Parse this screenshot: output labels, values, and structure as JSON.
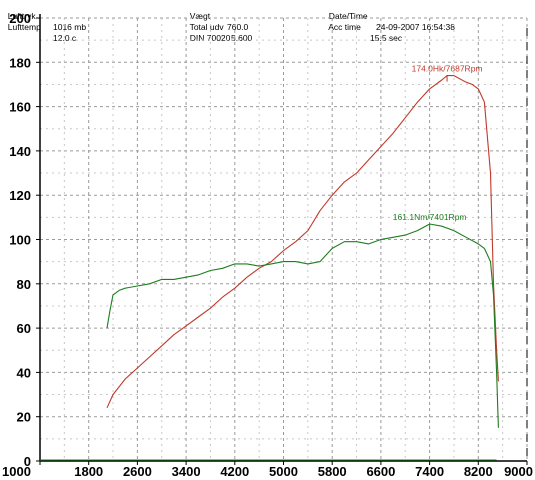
{
  "header": {
    "luft_tryk_label": "Lufttryk",
    "luft_tryk_value": "1016 mb",
    "luft_temp_label": "Lufttemp",
    "luft_temp_value": "12.0 c",
    "vaegt_label": "Vægt",
    "vaegt_value": "760.0",
    "total_udv_label": "Total udv",
    "total_udv_value": "5.600",
    "din_label": "DIN 70020",
    "datetime_label": "Date/Time",
    "datetime_value": "24-09-2007 16:54:38",
    "acc_time_label": "Acc time",
    "acc_time_value": "15.5 sec"
  },
  "chart_data": {
    "type": "line",
    "x_ticks": [
      1000,
      1800,
      2600,
      3400,
      4200,
      5000,
      5800,
      6600,
      7400,
      8200,
      9000
    ],
    "y_ticks": [
      0,
      20,
      40,
      60,
      80,
      100,
      120,
      140,
      160,
      180,
      200
    ],
    "xlim": [
      1000,
      9000
    ],
    "ylim": [
      0,
      200
    ],
    "grid": true,
    "colors": {
      "power": "#c0392b",
      "torque": "#1e7d1e",
      "grid": "#9a9a9a"
    },
    "series": [
      {
        "key": "power",
        "x": [
          2100,
          2200,
          2400,
          2600,
          2800,
          3000,
          3200,
          3400,
          3600,
          3800,
          4000,
          4200,
          4400,
          4600,
          4800,
          5000,
          5200,
          5400,
          5600,
          5800,
          6000,
          6200,
          6400,
          6600,
          6800,
          7000,
          7200,
          7400,
          7600,
          7687,
          7800,
          8000,
          8100,
          8200,
          8300,
          8400,
          8450,
          8500,
          8530
        ],
        "values": [
          24,
          30,
          37,
          42,
          47,
          52,
          57,
          61,
          65,
          69,
          74,
          78,
          83,
          87,
          90,
          95,
          99,
          104,
          113,
          120,
          126,
          130,
          136,
          142,
          148,
          155,
          162,
          168,
          172,
          174,
          174,
          171,
          170,
          168,
          162,
          130,
          80,
          50,
          36
        ]
      },
      {
        "key": "torque",
        "x": [
          2100,
          2150,
          2200,
          2300,
          2400,
          2600,
          2800,
          3000,
          3200,
          3400,
          3600,
          3800,
          4000,
          4200,
          4400,
          4600,
          4800,
          5000,
          5200,
          5400,
          5600,
          5800,
          6000,
          6200,
          6400,
          6600,
          6800,
          7000,
          7200,
          7401,
          7600,
          7800,
          8000,
          8200,
          8300,
          8400,
          8450,
          8500,
          8530
        ],
        "values": [
          60,
          68,
          75,
          77,
          78,
          79,
          80,
          82,
          82,
          83,
          84,
          86,
          87,
          89,
          89,
          88,
          89,
          90,
          90,
          89,
          90,
          96,
          99,
          99,
          98,
          100,
          101,
          102,
          104,
          107,
          106,
          104,
          101,
          98,
          96,
          90,
          75,
          40,
          15
        ]
      }
    ],
    "annotations": [
      {
        "series": "power",
        "x": 7687,
        "y": 174,
        "text": "174.0Hk/7687Rpm"
      },
      {
        "series": "torque",
        "x": 7401,
        "y": 107,
        "text": "161.1Nm/7401Rpm"
      }
    ]
  }
}
